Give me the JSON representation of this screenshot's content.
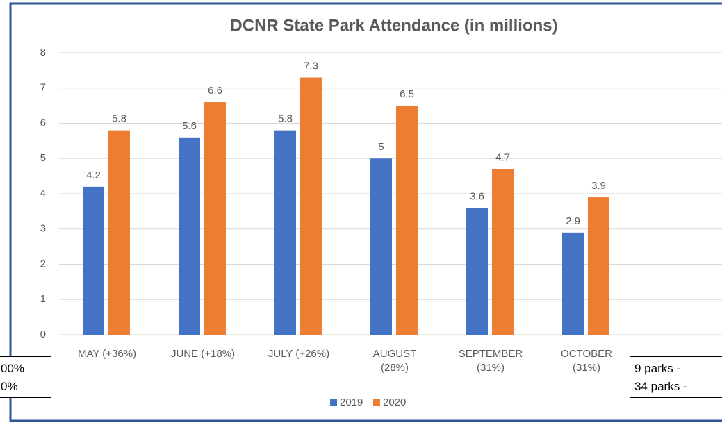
{
  "chart_data": {
    "type": "bar",
    "title": "DCNR State Park Attendance (in millions)",
    "categories": [
      "MAY (+36%)",
      "JUNE (+18%)",
      "JULY (+26%)",
      "AUGUST (28%)",
      "SEPTEMBER (31%)",
      "OCTOBER (31%)"
    ],
    "series": [
      {
        "name": "2019",
        "color": "#4472c4",
        "values": [
          4.2,
          5.6,
          5.8,
          5,
          3.6,
          2.9
        ]
      },
      {
        "name": "2020",
        "color": "#ed7d31",
        "values": [
          5.8,
          6.6,
          7.3,
          6.5,
          4.7,
          3.9
        ]
      }
    ],
    "ylim": [
      0,
      8
    ],
    "yticks": [
      0,
      1,
      2,
      3,
      4,
      5,
      6,
      7,
      8
    ],
    "grid": true,
    "legend": "bottom",
    "annotations": {
      "left": [
        "00%",
        "0%"
      ],
      "right": [
        "9 parks -",
        "34 parks -"
      ]
    }
  }
}
